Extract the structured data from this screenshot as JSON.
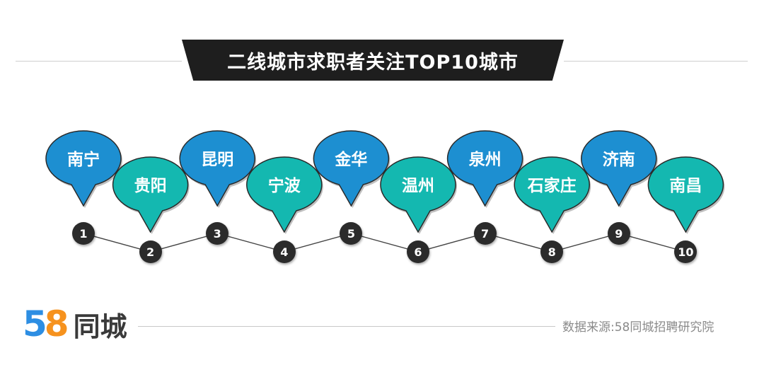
{
  "title": "二线城市求职者关注TOP10城市",
  "colors": {
    "blue_bubble": "#1d8fd1",
    "teal_bubble": "#14b8b0",
    "badge": "#2b2b2b",
    "banner": "#1e1e1e"
  },
  "cities": [
    {
      "rank": "1",
      "name": "南宁"
    },
    {
      "rank": "2",
      "name": "贵阳"
    },
    {
      "rank": "3",
      "name": "昆明"
    },
    {
      "rank": "4",
      "name": "宁波"
    },
    {
      "rank": "5",
      "name": "金华"
    },
    {
      "rank": "6",
      "name": "温州"
    },
    {
      "rank": "7",
      "name": "泉州"
    },
    {
      "rank": "8",
      "name": "石家庄"
    },
    {
      "rank": "9",
      "name": "济南"
    },
    {
      "rank": "10",
      "name": "南昌"
    }
  ],
  "footer": {
    "logo_digit_1": "5",
    "logo_digit_2": "8",
    "logo_text": "同城",
    "source": "数据来源:58同城招聘研究院"
  }
}
